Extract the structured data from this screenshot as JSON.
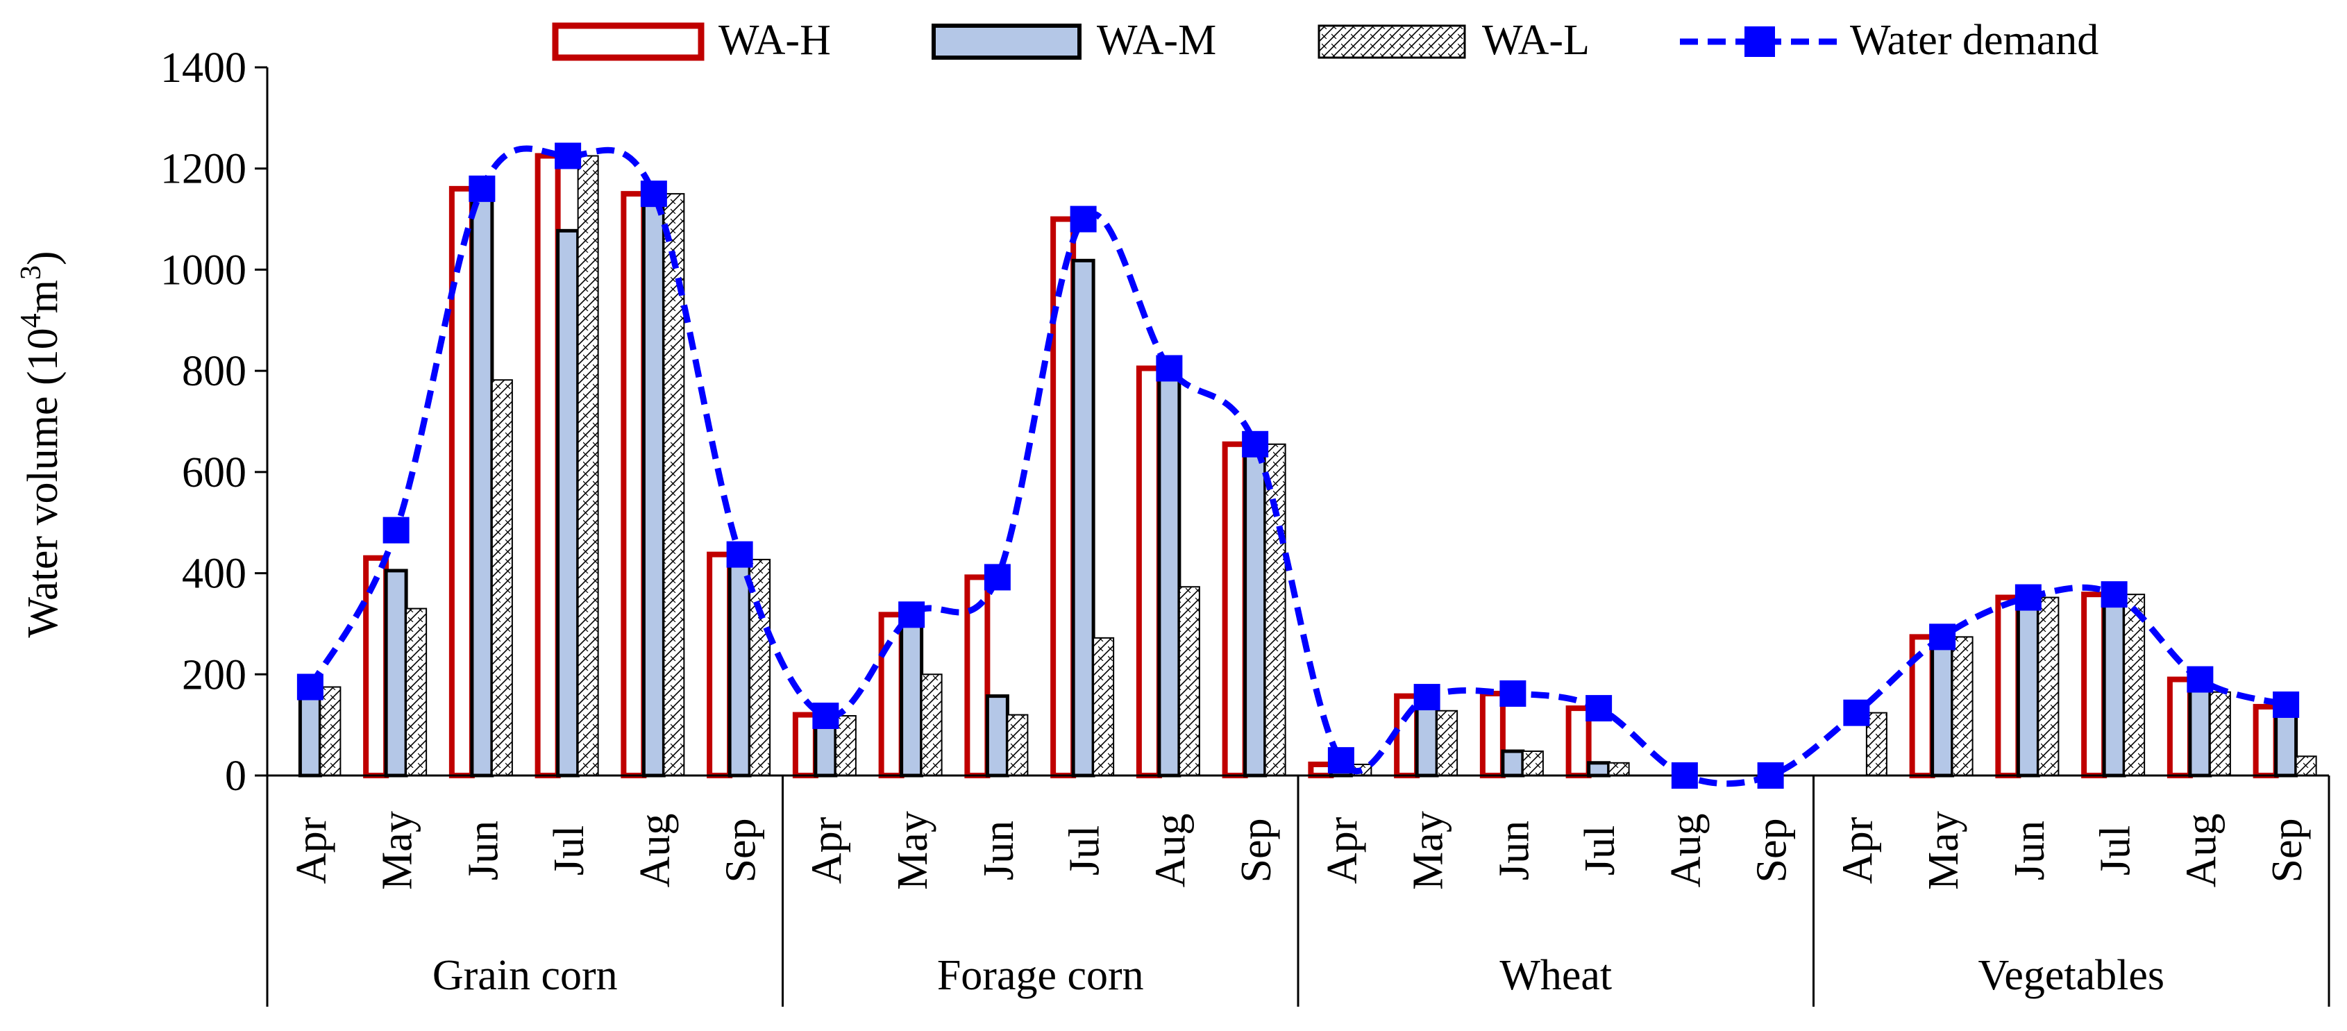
{
  "chart_data": {
    "type": "bar",
    "ylabel_main": "Water volume (10",
    "ylabel_sup1": "4",
    "ylabel_mid": "m",
    "ylabel_sup2": "3",
    "ylabel_end": ")",
    "ylim": [
      0,
      1400
    ],
    "yticks": [
      0,
      200,
      400,
      600,
      800,
      1000,
      1200,
      1400
    ],
    "ytick_labels": [
      "0",
      "200",
      "400",
      "600",
      "800",
      "1000",
      "1200",
      "1400"
    ],
    "groups": [
      {
        "name": "Grain corn",
        "months": [
          "Apr",
          "May",
          "Jun",
          "Jul",
          "Aug",
          "Sep"
        ]
      },
      {
        "name": "Forage corn",
        "months": [
          "Apr",
          "May",
          "Jun",
          "Jul",
          "Aug",
          "Sep"
        ]
      },
      {
        "name": "Wheat",
        "months": [
          "Apr",
          "May",
          "Jun",
          "Jul",
          "Aug",
          "Sep"
        ]
      },
      {
        "name": "Vegetables",
        "months": [
          "Apr",
          "May",
          "Jun",
          "Jul",
          "Aug",
          "Sep"
        ]
      }
    ],
    "series": [
      {
        "name": "WA-H",
        "style": "outline",
        "color": "#c00000",
        "values": [
          0,
          430,
          1160,
          1225,
          1150,
          437,
          120,
          318,
          392,
          1100,
          805,
          655,
          22,
          157,
          162,
          133,
          0,
          0,
          0,
          274,
          352,
          358,
          190,
          136
        ]
      },
      {
        "name": "WA-M",
        "style": "fill",
        "color": "#b4c7e7",
        "values": [
          175,
          405,
          1160,
          1077,
          1150,
          437,
          118,
          318,
          157,
          1018,
          805,
          655,
          22,
          157,
          48,
          25,
          0,
          0,
          0,
          274,
          352,
          358,
          190,
          136
        ]
      },
      {
        "name": "WA-L",
        "style": "hatch",
        "color": "#000000",
        "values": [
          175,
          330,
          782,
          1225,
          1150,
          427,
          118,
          200,
          120,
          272,
          373,
          655,
          22,
          128,
          48,
          25,
          0,
          0,
          124,
          274,
          352,
          358,
          165,
          38
        ]
      },
      {
        "name": "Water demand",
        "style": "dashed-line",
        "color": "#0000ff",
        "values": [
          175,
          485,
          1160,
          1225,
          1150,
          437,
          118,
          318,
          392,
          1100,
          805,
          655,
          30,
          155,
          162,
          133,
          0,
          0,
          124,
          274,
          352,
          358,
          190,
          140
        ]
      }
    ],
    "legend_position": "top"
  }
}
